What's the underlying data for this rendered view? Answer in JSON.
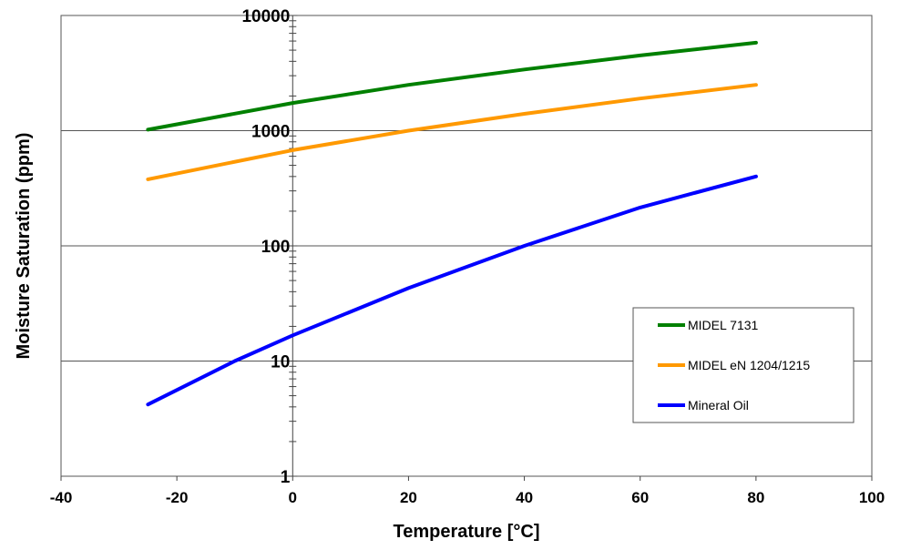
{
  "chart_data": {
    "type": "line",
    "title": "",
    "xlabel": "Temperature [°C]",
    "ylabel": "Moisture Saturation (ppm)",
    "xlim": [
      -40,
      100
    ],
    "ylim": [
      1,
      10000
    ],
    "yscale": "log",
    "grid": "horizontal major",
    "legend_position": "right",
    "xticks": [
      "-40",
      "-20",
      "0",
      "20",
      "40",
      "60",
      "80",
      "100"
    ],
    "yticks": [
      "1",
      "10",
      "100",
      "1000",
      "10000"
    ],
    "series": [
      {
        "name": "MIDEL 7131",
        "color": "#008000",
        "x": [
          -25,
          0,
          20,
          40,
          60,
          80
        ],
        "y": [
          1020,
          1740,
          2500,
          3400,
          4500,
          5800
        ]
      },
      {
        "name": "MIDEL eN 1204/1215",
        "color": "#FF9900",
        "x": [
          -25,
          0,
          20,
          40,
          60,
          80
        ],
        "y": [
          378,
          677,
          1000,
          1400,
          1900,
          2500
        ]
      },
      {
        "name": "Mineral Oil",
        "color": "#0000FF",
        "x": [
          -25,
          -10,
          0,
          20,
          40,
          60,
          80
        ],
        "y": [
          4.2,
          10,
          16.7,
          43,
          100,
          215,
          400
        ]
      }
    ]
  }
}
